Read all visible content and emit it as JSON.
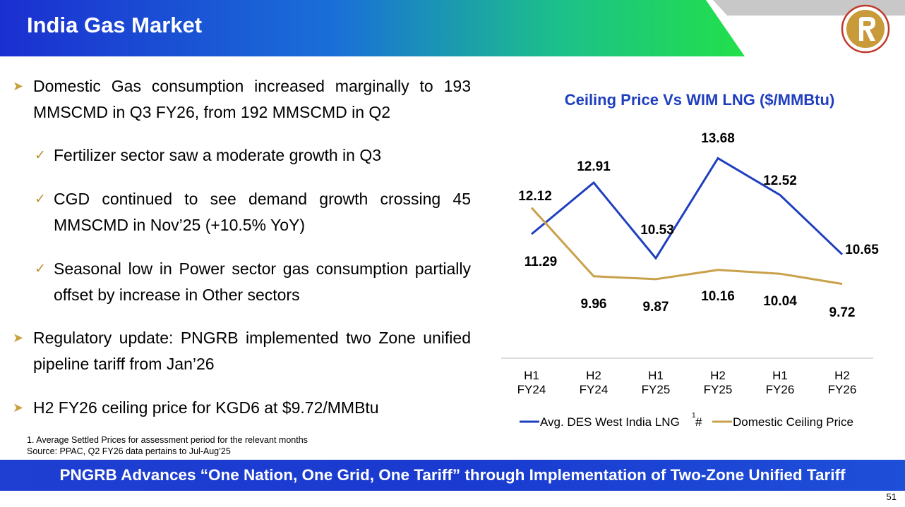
{
  "header": {
    "title": "India Gas Market"
  },
  "bullets": [
    {
      "level": 1,
      "text": "Domestic Gas consumption increased marginally to 193 MMSCMD in Q3 FY26, from 192 MMSCMD in Q2"
    },
    {
      "level": 2,
      "text": "Fertilizer sector saw a moderate growth in Q3"
    },
    {
      "level": 2,
      "text": "CGD continued to see demand growth crossing 45 MMSCMD in Nov’25 (+10.5% YoY)"
    },
    {
      "level": 2,
      "text": "Seasonal low in Power sector gas consumption partially offset by increase in Other sectors"
    },
    {
      "level": 1,
      "text": "Regulatory update: PNGRB implemented two Zone unified pipeline tariff from Jan’26"
    },
    {
      "level": 1,
      "text": "H2 FY26 ceiling price for KGD6 at $9.72/MMBtu"
    }
  ],
  "footnotes": {
    "note1": "1.   Average Settled Prices for assessment period for the relevant months",
    "source": "Source: PPAC, Q2 FY26 data pertains to Jul-Aug’25"
  },
  "banner": {
    "text": "PNGRB Advances “One Nation, One Grid, One Tariff” through Implementation of Two-Zone Unified Tariff"
  },
  "page_number": "51",
  "colors": {
    "header_blue": "#1b2fd0",
    "header_green": "#1fe050",
    "accent_blue": "#1f3fbf",
    "gold": "#c9a14a",
    "banner": "#1f3fd2"
  },
  "chart_data": {
    "type": "line",
    "title": "Ceiling Price Vs WIM LNG ($/MMBtu)",
    "categories": [
      [
        "H1",
        "FY24"
      ],
      [
        "H2",
        "FY24"
      ],
      [
        "H1",
        "FY25"
      ],
      [
        "H2",
        "FY25"
      ],
      [
        "H1",
        "FY26"
      ],
      [
        "H2",
        "FY26"
      ]
    ],
    "series": [
      {
        "name": "Avg. DES West India LNG",
        "superscript": "1",
        "suffix": "#",
        "color": "#1f3fbf",
        "values": [
          11.29,
          12.91,
          10.53,
          13.68,
          12.52,
          10.65
        ],
        "labels": [
          "11.29",
          "12.91",
          "10.53",
          "13.68",
          "12.52",
          "10.65"
        ]
      },
      {
        "name": "Domestic Ceiling Price",
        "color": "#c9a14a",
        "values": [
          12.12,
          9.96,
          9.87,
          10.16,
          10.04,
          9.72
        ],
        "labels": [
          "12.12",
          "9.96",
          "9.87",
          "10.16",
          "10.04",
          "9.72"
        ]
      }
    ],
    "ylim": [
      9,
      14
    ],
    "grid": false,
    "legend": "bottom"
  }
}
